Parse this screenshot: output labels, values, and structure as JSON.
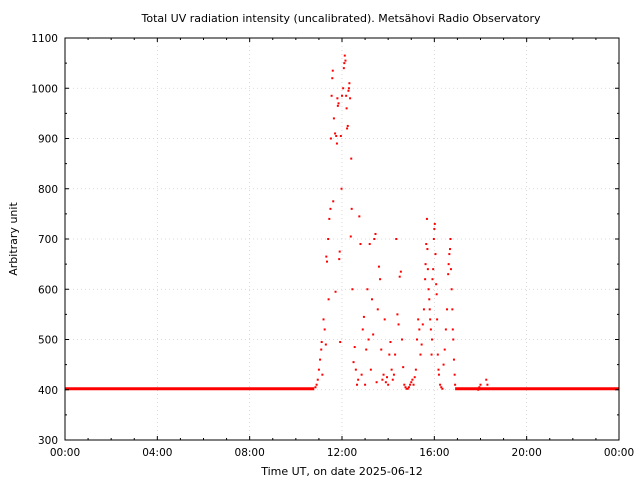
{
  "chart_data": {
    "type": "scatter",
    "title": "Total UV radiation intensity (uncalibrated). Metsähovi Radio Observatory",
    "xlabel": "Time UT, on date 2025-06-12",
    "ylabel": "Arbitrary unit",
    "x_unit": "hours UT",
    "xlim": [
      0,
      24
    ],
    "ylim": [
      300,
      1100
    ],
    "x_ticks": [
      0,
      4,
      8,
      12,
      16,
      20,
      24
    ],
    "x_tick_labels": [
      "00:00",
      "04:00",
      "08:00",
      "12:00",
      "16:00",
      "20:00",
      "00:00"
    ],
    "y_ticks": [
      300,
      400,
      500,
      600,
      700,
      800,
      900,
      1000,
      1100
    ],
    "y_tick_labels": [
      "300",
      "400",
      "500",
      "600",
      "700",
      "800",
      "900",
      "1000",
      "1100"
    ],
    "grid": true,
    "legend": "none",
    "marker_color": "#ff0000",
    "series": [
      {
        "baseline": {
          "x_start": 0.0,
          "x_end": 10.8,
          "y": 402
        },
        "baseline2": {
          "x_start": 16.9,
          "x_end": 24.0,
          "y": 402
        },
        "points": [
          [
            10.85,
            405
          ],
          [
            10.9,
            410
          ],
          [
            10.95,
            420
          ],
          [
            11.0,
            440
          ],
          [
            11.05,
            460
          ],
          [
            11.1,
            480
          ],
          [
            11.12,
            495
          ],
          [
            11.15,
            430
          ],
          [
            11.2,
            540
          ],
          [
            11.25,
            520
          ],
          [
            11.3,
            490
          ],
          [
            11.32,
            665
          ],
          [
            11.35,
            655
          ],
          [
            11.4,
            700
          ],
          [
            11.42,
            580
          ],
          [
            11.45,
            740
          ],
          [
            11.5,
            760
          ],
          [
            11.52,
            900
          ],
          [
            11.55,
            985
          ],
          [
            11.58,
            1020
          ],
          [
            11.6,
            1035
          ],
          [
            11.62,
            775
          ],
          [
            11.65,
            940
          ],
          [
            11.7,
            910
          ],
          [
            11.72,
            595
          ],
          [
            11.75,
            905
          ],
          [
            11.78,
            890
          ],
          [
            11.8,
            980
          ],
          [
            11.82,
            965
          ],
          [
            11.85,
            970
          ],
          [
            11.88,
            660
          ],
          [
            11.9,
            675
          ],
          [
            11.92,
            495
          ],
          [
            11.95,
            905
          ],
          [
            11.98,
            800
          ],
          [
            12.0,
            985
          ],
          [
            12.05,
            1000
          ],
          [
            12.08,
            1040
          ],
          [
            12.1,
            1050
          ],
          [
            12.12,
            1065
          ],
          [
            12.15,
            1055
          ],
          [
            12.18,
            985
          ],
          [
            12.2,
            960
          ],
          [
            12.22,
            920
          ],
          [
            12.25,
            925
          ],
          [
            12.28,
            995
          ],
          [
            12.3,
            1000
          ],
          [
            12.32,
            1010
          ],
          [
            12.35,
            980
          ],
          [
            12.38,
            705
          ],
          [
            12.4,
            860
          ],
          [
            12.42,
            760
          ],
          [
            12.45,
            600
          ],
          [
            12.5,
            455
          ],
          [
            12.55,
            485
          ],
          [
            12.6,
            440
          ],
          [
            12.65,
            410
          ],
          [
            12.7,
            420
          ],
          [
            12.75,
            745
          ],
          [
            12.8,
            690
          ],
          [
            12.85,
            430
          ],
          [
            12.9,
            520
          ],
          [
            12.95,
            545
          ],
          [
            13.0,
            410
          ],
          [
            13.05,
            480
          ],
          [
            13.1,
            600
          ],
          [
            13.15,
            500
          ],
          [
            13.2,
            690
          ],
          [
            13.25,
            440
          ],
          [
            13.3,
            580
          ],
          [
            13.35,
            510
          ],
          [
            13.4,
            700
          ],
          [
            13.45,
            710
          ],
          [
            13.5,
            415
          ],
          [
            13.55,
            560
          ],
          [
            13.6,
            645
          ],
          [
            13.65,
            620
          ],
          [
            13.7,
            480
          ],
          [
            13.75,
            420
          ],
          [
            13.8,
            430
          ],
          [
            13.85,
            540
          ],
          [
            13.9,
            415
          ],
          [
            13.95,
            425
          ],
          [
            14.0,
            410
          ],
          [
            14.05,
            470
          ],
          [
            14.1,
            495
          ],
          [
            14.15,
            440
          ],
          [
            14.2,
            420
          ],
          [
            14.25,
            430
          ],
          [
            14.3,
            470
          ],
          [
            14.35,
            700
          ],
          [
            14.4,
            550
          ],
          [
            14.45,
            530
          ],
          [
            14.5,
            625
          ],
          [
            14.55,
            635
          ],
          [
            14.6,
            500
          ],
          [
            14.65,
            445
          ],
          [
            14.7,
            410
          ],
          [
            14.75,
            405
          ],
          [
            14.8,
            402
          ],
          [
            14.85,
            402
          ],
          [
            14.9,
            405
          ],
          [
            14.95,
            410
          ],
          [
            15.0,
            415
          ],
          [
            15.05,
            420
          ],
          [
            15.1,
            410
          ],
          [
            15.15,
            425
          ],
          [
            15.2,
            440
          ],
          [
            15.25,
            500
          ],
          [
            15.3,
            540
          ],
          [
            15.35,
            520
          ],
          [
            15.4,
            470
          ],
          [
            15.45,
            490
          ],
          [
            15.5,
            530
          ],
          [
            15.55,
            560
          ],
          [
            15.6,
            620
          ],
          [
            15.62,
            650
          ],
          [
            15.65,
            690
          ],
          [
            15.68,
            740
          ],
          [
            15.7,
            680
          ],
          [
            15.72,
            640
          ],
          [
            15.75,
            600
          ],
          [
            15.78,
            580
          ],
          [
            15.8,
            560
          ],
          [
            15.82,
            540
          ],
          [
            15.85,
            520
          ],
          [
            15.88,
            470
          ],
          [
            15.9,
            500
          ],
          [
            15.92,
            620
          ],
          [
            15.95,
            640
          ],
          [
            15.98,
            700
          ],
          [
            16.0,
            720
          ],
          [
            16.02,
            730
          ],
          [
            16.05,
            670
          ],
          [
            16.08,
            610
          ],
          [
            16.1,
            590
          ],
          [
            16.12,
            540
          ],
          [
            16.15,
            470
          ],
          [
            16.18,
            440
          ],
          [
            16.2,
            430
          ],
          [
            16.25,
            410
          ],
          [
            16.3,
            405
          ],
          [
            16.35,
            402
          ],
          [
            16.4,
            450
          ],
          [
            16.45,
            480
          ],
          [
            16.5,
            520
          ],
          [
            16.55,
            560
          ],
          [
            16.6,
            630
          ],
          [
            16.62,
            650
          ],
          [
            16.65,
            670
          ],
          [
            16.68,
            680
          ],
          [
            16.7,
            700
          ],
          [
            16.72,
            640
          ],
          [
            16.75,
            600
          ],
          [
            16.78,
            560
          ],
          [
            16.8,
            520
          ],
          [
            16.82,
            500
          ],
          [
            16.85,
            460
          ],
          [
            16.88,
            430
          ],
          [
            16.9,
            410
          ],
          [
            17.9,
            400
          ],
          [
            17.95,
            405
          ],
          [
            18.0,
            410
          ],
          [
            18.25,
            420
          ],
          [
            18.3,
            410
          ]
        ]
      }
    ]
  }
}
